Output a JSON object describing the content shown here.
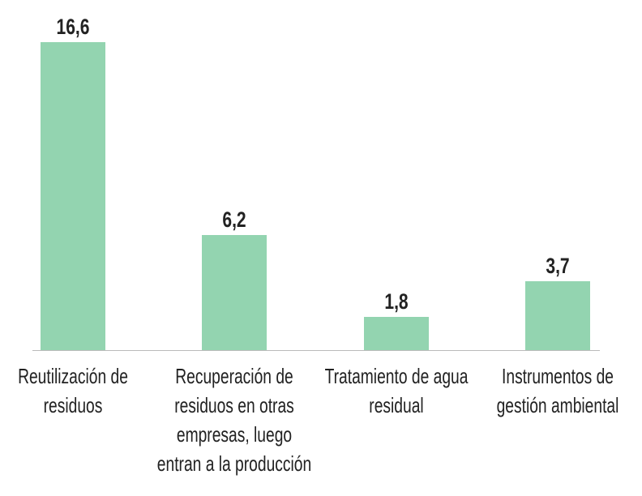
{
  "chart_data": {
    "type": "bar",
    "categories": [
      "Reutilización de residuos",
      "Recuperación de residuos en otras empresas, luego entran a la producción",
      "Tratamiento de agua residual",
      "Instrumentos de gestión ambiental"
    ],
    "values": [
      16.6,
      6.2,
      1.8,
      3.7
    ],
    "value_labels": [
      "16,6",
      "6,2",
      "1,8",
      "3,7"
    ],
    "color": "#93d4b0",
    "ylim": [
      0,
      17
    ]
  }
}
